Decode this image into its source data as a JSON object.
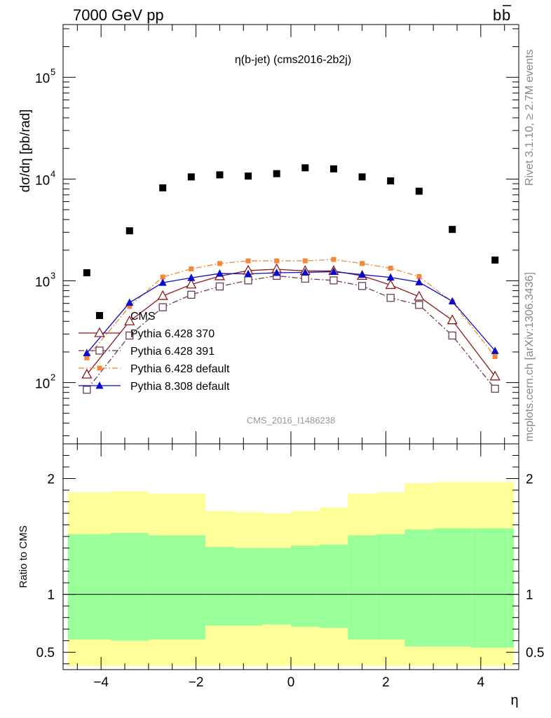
{
  "header": {
    "left": "7000 GeV pp",
    "right_main": "b",
    "right_bar": "b"
  },
  "side_text": {
    "rivet": "Rivet 3.1.10, ≥ 2.7M events",
    "mcplots": "mcplots.cern.ch [arXiv:1306.3436]"
  },
  "chart_data": [
    {
      "type": "line",
      "scale": "log",
      "title": "η(b-jet) (cms2016-2b2j)",
      "watermark": "CMS_2016_I1486238",
      "ylabel": "dσ/dη [pb/rad]",
      "ylim": [
        25,
        330000
      ],
      "y_ticks": [
        {
          "value": 100,
          "base": "10",
          "exp": "2"
        },
        {
          "value": 1000,
          "base": "10",
          "exp": "3"
        },
        {
          "value": 10000,
          "base": "10",
          "exp": "4"
        },
        {
          "value": 100000,
          "base": "10",
          "exp": "5"
        }
      ],
      "x": [
        -4.3,
        -3.4,
        -2.7,
        -2.1,
        -1.5,
        -0.9,
        -0.3,
        0.3,
        0.9,
        1.5,
        2.1,
        2.7,
        3.4,
        4.3
      ],
      "legend_position": "lower-left",
      "series": [
        {
          "name": "CMS",
          "marker": "square",
          "color": "#000000",
          "line": "none",
          "values": [
            1200,
            3100,
            8200,
            10500,
            11000,
            10700,
            11300,
            12900,
            12600,
            10500,
            9600,
            7600,
            3200,
            1600
          ]
        },
        {
          "name": "Pythia 6.428 370",
          "marker": "triangle-open",
          "color": "#8b1a1a",
          "line": "solid",
          "values": [
            120,
            400,
            710,
            920,
            1110,
            1260,
            1300,
            1250,
            1250,
            1120,
            910,
            700,
            410,
            115
          ]
        },
        {
          "name": "Pythia 6.428 391",
          "marker": "square-open",
          "color": "#6b3a5a",
          "line": "dashdot",
          "values": [
            85,
            290,
            550,
            730,
            880,
            1010,
            1120,
            1050,
            1010,
            890,
            680,
            580,
            290,
            87
          ]
        },
        {
          "name": "Pythia 6.428 default",
          "marker": "square-small",
          "color": "#f4883a",
          "line": "dashdot",
          "values": [
            175,
            560,
            1090,
            1310,
            1480,
            1570,
            1570,
            1570,
            1620,
            1480,
            1330,
            1100,
            620,
            180
          ]
        },
        {
          "name": "Pythia 8.308 default",
          "marker": "triangle",
          "color": "#0b0bcc",
          "line": "solid",
          "values": [
            195,
            610,
            960,
            1070,
            1180,
            1170,
            1200,
            1210,
            1230,
            1150,
            1080,
            970,
            630,
            205
          ]
        }
      ]
    },
    {
      "type": "area",
      "ylabel": "Ratio to CMS",
      "xlabel": "η",
      "xlim": [
        -4.8,
        4.8
      ],
      "ylim": [
        0.35,
        2.3
      ],
      "x_ticks": [
        -4,
        -2,
        0,
        2,
        4
      ],
      "y_ticks": [
        0.5,
        1,
        2
      ],
      "reference_line": 1,
      "bands": {
        "edges": [
          -4.7,
          -3.8,
          -3.0,
          -1.8,
          -1.2,
          -0.6,
          0.0,
          0.6,
          1.2,
          1.8,
          2.4,
          3.0,
          3.8,
          4.7
        ],
        "yellow_high": [
          1.88,
          1.89,
          1.87,
          1.72,
          1.71,
          1.7,
          1.72,
          1.75,
          1.87,
          1.88,
          1.96,
          1.97,
          1.97
        ],
        "yellow_low": [
          0.38,
          0.38,
          0.38,
          0.38,
          0.38,
          0.38,
          0.38,
          0.38,
          0.38,
          0.38,
          0.38,
          0.38,
          0.38
        ],
        "green_high": [
          1.52,
          1.53,
          1.51,
          1.41,
          1.4,
          1.4,
          1.42,
          1.43,
          1.51,
          1.52,
          1.56,
          1.57,
          1.57
        ],
        "green_low": [
          0.61,
          0.6,
          0.61,
          0.73,
          0.73,
          0.74,
          0.72,
          0.71,
          0.61,
          0.61,
          0.55,
          0.55,
          0.54
        ]
      },
      "colors": {
        "yellow": "#ffff99",
        "green": "#99ff99"
      }
    }
  ]
}
